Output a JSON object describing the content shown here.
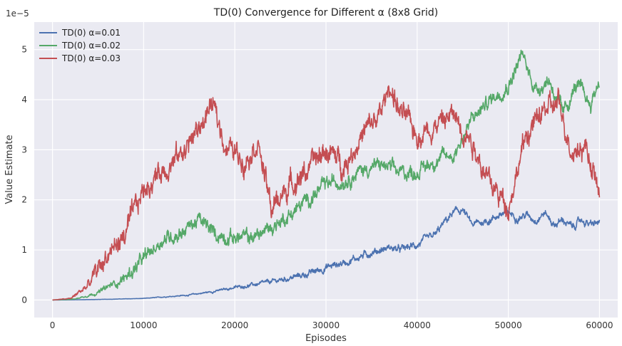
{
  "chart_data": {
    "type": "line",
    "title": "TD(0) Convergence for Different α (8x8 Grid)",
    "xlabel": "Episodes",
    "ylabel": "Value Estimate",
    "y_multiplier_label": "1e−5",
    "xlim": [
      -2000,
      62000
    ],
    "ylim": [
      -0.35,
      5.55
    ],
    "y_scale_factor": 1e-05,
    "x_ticks": [
      0,
      10000,
      20000,
      30000,
      40000,
      50000,
      60000
    ],
    "x_tick_labels": [
      "0",
      "10000",
      "20000",
      "30000",
      "40000",
      "50000",
      "60000"
    ],
    "y_ticks": [
      0,
      1,
      2,
      3,
      4,
      5
    ],
    "y_tick_labels": [
      "0",
      "1",
      "2",
      "3",
      "4",
      "5"
    ],
    "grid": true,
    "legend_position": "top-left",
    "background": "#eaeaf2",
    "series": [
      {
        "name": "TD(0) α=0.01",
        "color": "#4c72b0",
        "noise": 0.07,
        "x": [
          0,
          5000,
          10000,
          15000,
          18000,
          20000,
          23000,
          25000,
          28000,
          30000,
          32000,
          35000,
          37000,
          38000,
          40000,
          42000,
          43000,
          44000,
          45000,
          46000,
          47000,
          48000,
          49000,
          50000,
          51000,
          52000,
          53000,
          54000,
          55000,
          56000,
          57000,
          58000,
          59000,
          60000
        ],
        "y": [
          0,
          0.01,
          0.03,
          0.1,
          0.18,
          0.25,
          0.33,
          0.4,
          0.52,
          0.65,
          0.75,
          0.95,
          1.05,
          1.0,
          1.1,
          1.3,
          1.55,
          1.75,
          1.8,
          1.5,
          1.55,
          1.6,
          1.7,
          1.75,
          1.65,
          1.7,
          1.6,
          1.75,
          1.5,
          1.6,
          1.45,
          1.6,
          1.5,
          1.55
        ]
      },
      {
        "name": "TD(0) α=0.02",
        "color": "#55a868",
        "noise": 0.14,
        "x": [
          0,
          2500,
          5000,
          8000,
          10000,
          12000,
          14000,
          16000,
          18000,
          20000,
          22000,
          24000,
          26000,
          28000,
          30000,
          32000,
          34000,
          36000,
          38000,
          40000,
          42000,
          44000,
          46000,
          48000,
          50000,
          51500,
          53000,
          54500,
          56000,
          57500,
          59000,
          60000
        ],
        "y": [
          0,
          0.02,
          0.15,
          0.45,
          0.8,
          1.2,
          1.35,
          1.6,
          1.3,
          1.25,
          1.25,
          1.45,
          1.7,
          2.0,
          2.3,
          2.4,
          2.6,
          2.7,
          2.55,
          2.55,
          2.8,
          2.9,
          3.6,
          4.0,
          4.3,
          4.9,
          4.2,
          4.4,
          3.7,
          4.3,
          3.9,
          4.4
        ]
      },
      {
        "name": "TD(0) α=0.03",
        "color": "#c44e52",
        "noise": 0.22,
        "x": [
          0,
          2000,
          4000,
          6000,
          8000,
          10000,
          12000,
          14000,
          16000,
          17500,
          19000,
          21000,
          22500,
          24000,
          26000,
          28000,
          30000,
          32000,
          34000,
          36000,
          37000,
          38000,
          40000,
          42000,
          44000,
          46000,
          48000,
          50000,
          52000,
          54000,
          55500,
          57000,
          58500,
          60000
        ],
        "y": [
          0,
          0.03,
          0.3,
          0.9,
          1.3,
          2.2,
          2.6,
          2.9,
          3.4,
          3.9,
          3.1,
          2.8,
          3.2,
          1.8,
          2.3,
          2.6,
          3.0,
          2.7,
          3.3,
          3.7,
          4.3,
          3.8,
          3.3,
          3.5,
          3.7,
          3.2,
          2.3,
          1.9,
          3.3,
          3.8,
          3.9,
          3.0,
          3.1,
          2.1
        ]
      }
    ]
  }
}
